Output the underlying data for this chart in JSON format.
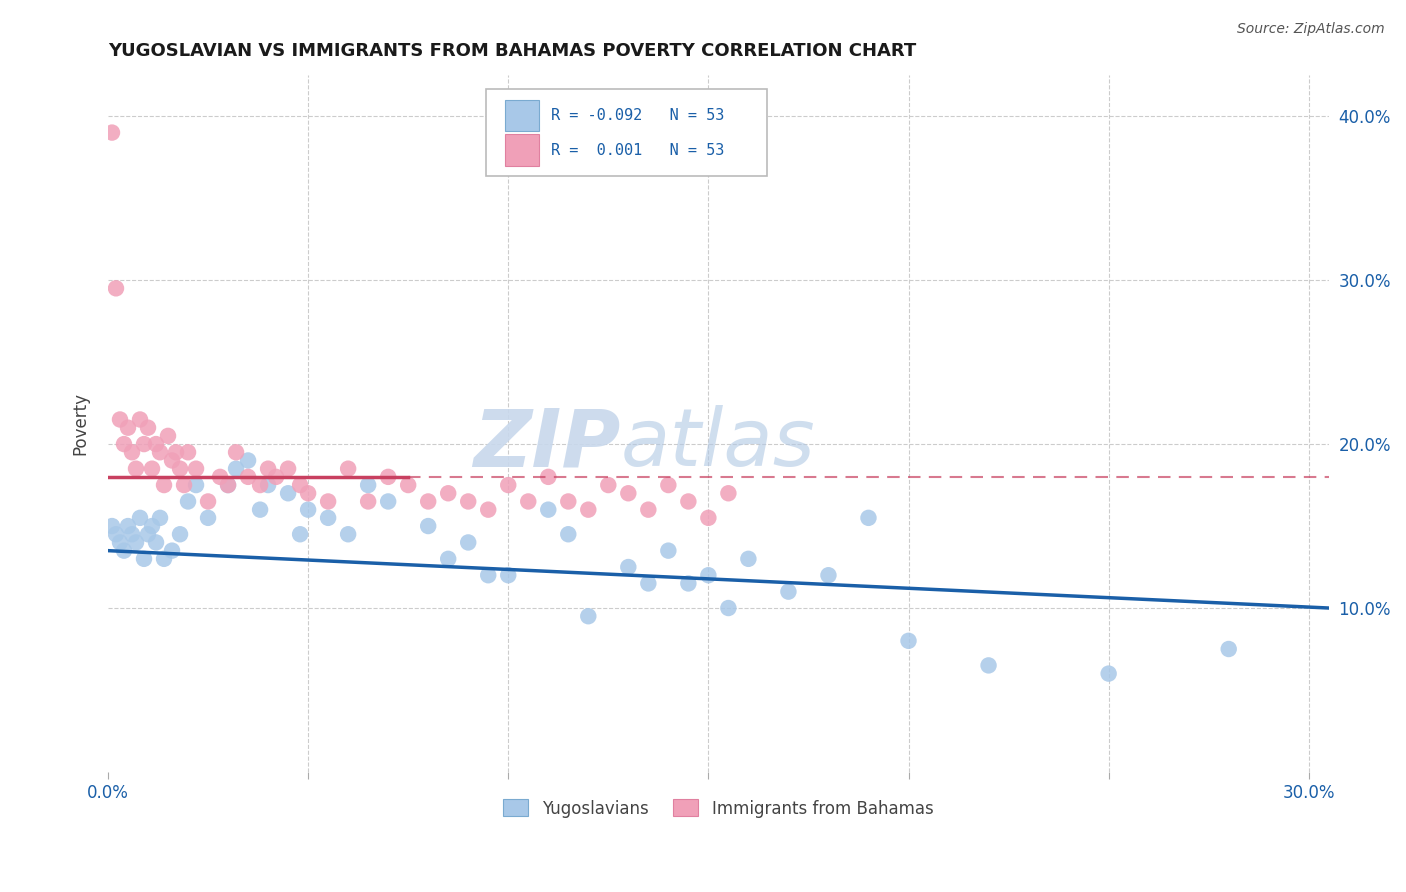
{
  "title": "YUGOSLAVIAN VS IMMIGRANTS FROM BAHAMAS POVERTY CORRELATION CHART",
  "source": "Source: ZipAtlas.com",
  "ylabel": "Poverty",
  "xlim": [
    0.0,
    0.305
  ],
  "ylim": [
    0.0,
    0.425
  ],
  "x_ticks": [
    0.0,
    0.05,
    0.1,
    0.15,
    0.2,
    0.25,
    0.3
  ],
  "x_tick_labels": [
    "0.0%",
    "",
    "",
    "",
    "",
    "",
    "30.0%"
  ],
  "y_ticks_right": [
    0.1,
    0.2,
    0.3,
    0.4
  ],
  "y_tick_labels_right": [
    "10.0%",
    "20.0%",
    "30.0%",
    "40.0%"
  ],
  "blue_color": "#A8C8E8",
  "pink_color": "#F0A0B8",
  "line_blue_color": "#1A5FA8",
  "line_pink_color": "#C84060",
  "blue_scatter_x": [
    0.001,
    0.002,
    0.003,
    0.004,
    0.005,
    0.006,
    0.007,
    0.008,
    0.009,
    0.01,
    0.011,
    0.012,
    0.013,
    0.014,
    0.016,
    0.018,
    0.02,
    0.022,
    0.025,
    0.03,
    0.032,
    0.035,
    0.038,
    0.04,
    0.045,
    0.048,
    0.05,
    0.055,
    0.06,
    0.065,
    0.07,
    0.08,
    0.085,
    0.09,
    0.095,
    0.1,
    0.11,
    0.115,
    0.12,
    0.13,
    0.135,
    0.14,
    0.145,
    0.15,
    0.155,
    0.16,
    0.17,
    0.18,
    0.19,
    0.2,
    0.22,
    0.25,
    0.28
  ],
  "blue_scatter_y": [
    0.15,
    0.145,
    0.14,
    0.135,
    0.15,
    0.145,
    0.14,
    0.155,
    0.13,
    0.145,
    0.15,
    0.14,
    0.155,
    0.13,
    0.135,
    0.145,
    0.165,
    0.175,
    0.155,
    0.175,
    0.185,
    0.19,
    0.16,
    0.175,
    0.17,
    0.145,
    0.16,
    0.155,
    0.145,
    0.175,
    0.165,
    0.15,
    0.13,
    0.14,
    0.12,
    0.12,
    0.16,
    0.145,
    0.095,
    0.125,
    0.115,
    0.135,
    0.115,
    0.12,
    0.1,
    0.13,
    0.11,
    0.12,
    0.155,
    0.08,
    0.065,
    0.06,
    0.075
  ],
  "pink_scatter_x": [
    0.001,
    0.002,
    0.003,
    0.004,
    0.005,
    0.006,
    0.007,
    0.008,
    0.009,
    0.01,
    0.011,
    0.012,
    0.013,
    0.014,
    0.015,
    0.016,
    0.017,
    0.018,
    0.019,
    0.02,
    0.022,
    0.025,
    0.028,
    0.03,
    0.032,
    0.035,
    0.038,
    0.04,
    0.042,
    0.045,
    0.048,
    0.05,
    0.055,
    0.06,
    0.065,
    0.07,
    0.075,
    0.08,
    0.085,
    0.09,
    0.095,
    0.1,
    0.105,
    0.11,
    0.115,
    0.12,
    0.125,
    0.13,
    0.135,
    0.14,
    0.145,
    0.15,
    0.155
  ],
  "pink_scatter_y": [
    0.39,
    0.295,
    0.215,
    0.2,
    0.21,
    0.195,
    0.185,
    0.215,
    0.2,
    0.21,
    0.185,
    0.2,
    0.195,
    0.175,
    0.205,
    0.19,
    0.195,
    0.185,
    0.175,
    0.195,
    0.185,
    0.165,
    0.18,
    0.175,
    0.195,
    0.18,
    0.175,
    0.185,
    0.18,
    0.185,
    0.175,
    0.17,
    0.165,
    0.185,
    0.165,
    0.18,
    0.175,
    0.165,
    0.17,
    0.165,
    0.16,
    0.175,
    0.165,
    0.18,
    0.165,
    0.16,
    0.175,
    0.17,
    0.16,
    0.175,
    0.165,
    0.155,
    0.17
  ],
  "blue_line_x0": 0.0,
  "blue_line_y0": 0.135,
  "blue_line_x1": 0.305,
  "blue_line_y1": 0.1,
  "pink_line_solid_x0": 0.0,
  "pink_line_solid_y0": 0.18,
  "pink_line_solid_x1": 0.075,
  "pink_line_solid_y1": 0.18,
  "pink_line_dash_x0": 0.075,
  "pink_line_dash_y0": 0.18,
  "pink_line_dash_x1": 0.305,
  "pink_line_dash_y1": 0.18
}
